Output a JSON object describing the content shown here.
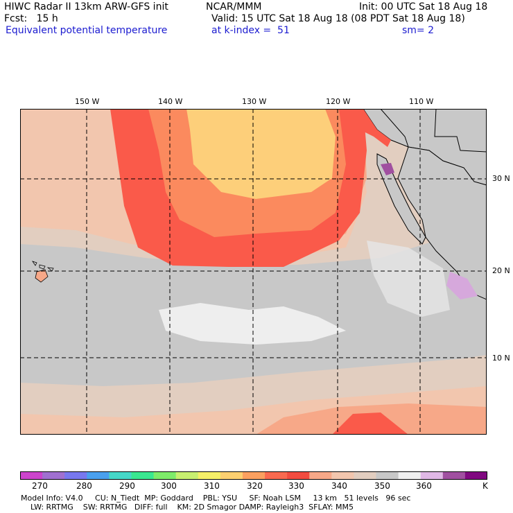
{
  "header": {
    "title": "HIWC Radar II 13km ARW-GFS init",
    "org": "NCAR/MMM",
    "init": "Init: 00 UTC Sat 18 Aug 18",
    "fcst": "Fcst:   15 h",
    "valid": "Valid: 15 UTC Sat 18 Aug 18 (08 PDT Sat 18 Aug 18)",
    "field": "Equivalent potential temperature",
    "level": "at k-index =  51",
    "smooth": "sm= 2"
  },
  "map": {
    "lon_labels": [
      "150 W",
      "140 W",
      "130 W",
      "120 W",
      "110 W"
    ],
    "lat_labels": [
      "30 N",
      "20 N",
      "10 N"
    ],
    "colors": {
      "ocean_cool": "#c8c8c8",
      "ocean_mid": "#e2cec0",
      "tan": "#f2c6ae",
      "salmon": "#f7a888",
      "orange": "#fb8a5e",
      "red": "#fa5a4a",
      "yellow": "#fdcf7a",
      "white": "#f8f8f8",
      "land": "#c8c8c8",
      "purple": "#d6a8dc"
    }
  },
  "colorbar": {
    "labels": [
      "270",
      "280",
      "290",
      "300",
      "310",
      "320",
      "330",
      "340",
      "350",
      "360"
    ],
    "unit": "K",
    "colors": [
      "#cc44cc",
      "#a070d0",
      "#7878ee",
      "#4aa0ee",
      "#46d8c8",
      "#3ae890",
      "#7eec6a",
      "#c8f070",
      "#f6f068",
      "#fdd070",
      "#fba060",
      "#fa6a50",
      "#f24c40",
      "#f7a888",
      "#f2c6ae",
      "#e2cec0",
      "#c8c8c8",
      "#f0f0f0",
      "#e0b8e6",
      "#a050a0",
      "#800880"
    ]
  },
  "model_info": {
    "line1": "Model Info: V4.0     CU: N_Tiedt  MP: Goddard    PBL: YSU     SF: Noah LSM     13 km   51 levels   96 sec",
    "line2": "    LW: RRTMG    SW: RRTMG   DIFF: full    KM: 2D Smagor DAMP: Rayleigh3  SFLAY: MM5"
  }
}
